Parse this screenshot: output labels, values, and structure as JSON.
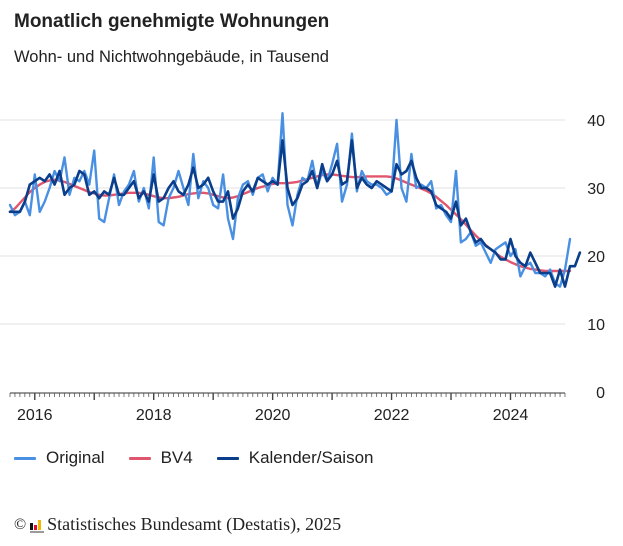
{
  "chart_data": {
    "type": "line",
    "title": "Monatlich genehmigte Wohnungen",
    "subtitle": "Wohn- und Nichtwohngebäude, in Tausend",
    "xlabel": "",
    "ylabel": "",
    "ylim": [
      0,
      40
    ],
    "yticks": [
      0,
      10,
      20,
      30,
      40
    ],
    "xticks": [
      "2016",
      "2018",
      "2020",
      "2022",
      "2024"
    ],
    "x_start": "2015-08",
    "x_end": "2024-12",
    "grid": true,
    "legend_position": "bottom-left",
    "series": [
      {
        "name": "Original",
        "color": "#4a90e2",
        "values": [
          27.5,
          26.0,
          26.5,
          28.0,
          26.0,
          32.0,
          26.5,
          28.0,
          30.0,
          32.5,
          31.0,
          34.5,
          29.0,
          31.5,
          31.0,
          32.5,
          30.5,
          35.5,
          25.5,
          25.0,
          28.5,
          32.0,
          27.5,
          29.5,
          30.5,
          32.5,
          28.0,
          30.0,
          27.0,
          34.5,
          25.0,
          24.5,
          28.5,
          30.0,
          32.5,
          30.0,
          27.5,
          35.0,
          28.5,
          31.0,
          30.0,
          27.5,
          27.0,
          32.0,
          25.5,
          22.5,
          28.5,
          30.5,
          31.0,
          29.0,
          31.5,
          32.0,
          29.5,
          31.5,
          30.5,
          41.0,
          27.5,
          24.5,
          29.0,
          31.5,
          31.0,
          34.0,
          30.0,
          32.5,
          31.0,
          33.5,
          36.5,
          28.0,
          30.5,
          38.0,
          29.5,
          32.5,
          31.0,
          30.5,
          30.5,
          30.0,
          29.0,
          29.5,
          40.0,
          30.0,
          28.0,
          35.0,
          30.0,
          30.5,
          30.0,
          31.0,
          27.0,
          27.5,
          26.0,
          25.0,
          32.5,
          22.0,
          22.5,
          23.5,
          21.5,
          22.0,
          20.5,
          19.0,
          21.0,
          21.5,
          22.0,
          20.0,
          21.0,
          17.0,
          18.5,
          19.0,
          17.5,
          17.5,
          17.0,
          18.0,
          16.0,
          15.5,
          18.0,
          22.5
        ]
      },
      {
        "name": "BV4",
        "color": "#e0566e",
        "values": [
          26.5,
          27.0,
          27.8,
          28.6,
          29.4,
          30.0,
          30.5,
          30.9,
          31.1,
          31.2,
          31.1,
          30.9,
          30.6,
          30.3,
          30.0,
          29.7,
          29.4,
          29.2,
          29.0,
          28.9,
          28.9,
          29.0,
          29.1,
          29.2,
          29.3,
          29.3,
          29.3,
          29.2,
          29.0,
          28.8,
          28.6,
          28.5,
          28.5,
          28.6,
          28.7,
          28.9,
          29.1,
          29.2,
          29.3,
          29.3,
          29.2,
          29.0,
          28.8,
          28.6,
          28.5,
          28.6,
          28.8,
          29.1,
          29.4,
          29.7,
          30.0,
          30.2,
          30.4,
          30.6,
          30.7,
          30.7,
          30.7,
          30.8,
          30.9,
          31.1,
          31.3,
          31.5,
          31.7,
          31.9,
          32.0,
          32.0,
          31.9,
          31.8,
          31.7,
          31.6,
          31.6,
          31.6,
          31.7,
          31.7,
          31.7,
          31.7,
          31.7,
          31.6,
          31.4,
          31.1,
          30.8,
          30.5,
          30.2,
          29.9,
          29.6,
          29.2,
          28.7,
          28.1,
          27.5,
          26.8,
          26.1,
          25.4,
          24.6,
          23.8,
          23.0,
          22.3,
          21.6,
          21.0,
          20.4,
          19.9,
          19.5,
          19.1,
          18.8,
          18.5,
          18.3,
          18.1,
          18.0,
          17.9,
          17.8,
          17.8,
          17.8,
          17.8,
          17.8,
          17.8
        ]
      },
      {
        "name": "Kalender/Saison",
        "color": "#0a3d8a",
        "values": [
          26.5,
          26.5,
          26.5,
          28.0,
          30.5,
          31.0,
          31.5,
          31.0,
          32.0,
          30.5,
          32.5,
          29.0,
          30.0,
          30.5,
          32.5,
          32.0,
          29.0,
          29.5,
          28.5,
          29.5,
          29.0,
          31.5,
          29.0,
          29.0,
          30.0,
          31.0,
          28.5,
          29.5,
          28.0,
          32.0,
          28.0,
          28.5,
          30.0,
          31.0,
          29.5,
          29.0,
          30.5,
          33.0,
          30.0,
          30.5,
          31.5,
          29.5,
          28.0,
          28.0,
          29.5,
          25.5,
          27.0,
          29.5,
          30.5,
          29.5,
          31.5,
          31.0,
          30.5,
          31.0,
          30.5,
          37.0,
          30.0,
          27.5,
          28.5,
          30.5,
          31.0,
          32.5,
          30.0,
          33.5,
          31.0,
          32.0,
          34.0,
          30.5,
          31.0,
          37.0,
          30.0,
          31.5,
          30.5,
          30.0,
          31.0,
          30.5,
          30.0,
          29.5,
          33.5,
          32.0,
          32.5,
          34.0,
          31.5,
          30.0,
          30.0,
          29.5,
          27.5,
          27.0,
          26.5,
          25.5,
          28.0,
          24.5,
          25.5,
          23.5,
          22.0,
          22.5,
          21.5,
          21.0,
          20.5,
          19.5,
          19.5,
          22.5,
          20.0,
          19.0,
          18.5,
          20.5,
          19.0,
          17.5,
          17.5,
          17.5,
          15.5,
          18.0,
          15.5,
          18.5,
          18.5,
          20.5
        ]
      }
    ]
  },
  "legend": [
    {
      "label": "Original"
    },
    {
      "label": "BV4"
    },
    {
      "label": "Kalender/Saison"
    }
  ],
  "footer": {
    "copyright_symbol": "©",
    "source": "Statistisches Bundesamt (Destatis), 2025"
  }
}
